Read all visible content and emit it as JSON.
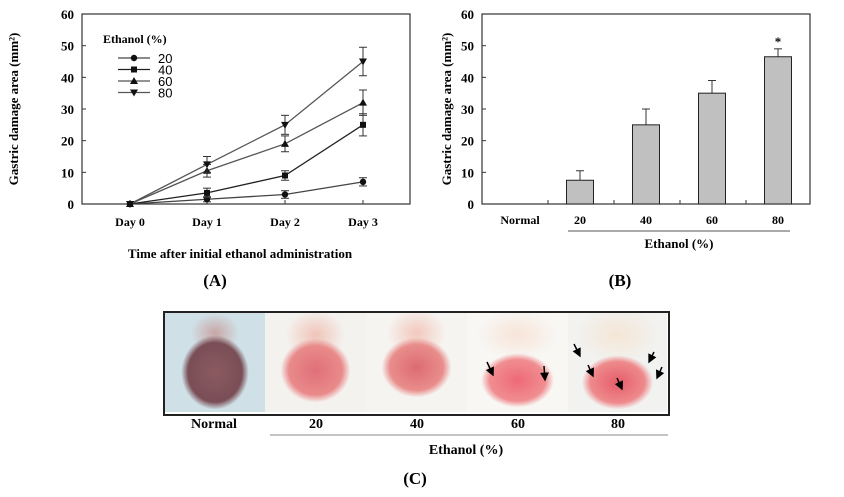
{
  "chart_data": [
    {
      "panel": "(A)",
      "type": "line",
      "ylabel": "Gastric damage area (mm²)",
      "xlabel": "Time after initial ethanol administration",
      "categories": [
        "Day 0",
        "Day 1",
        "Day 2",
        "Day 3"
      ],
      "ylim": [
        0,
        60
      ],
      "yticks": [
        "0",
        "10",
        "20",
        "30",
        "40",
        "50",
        "60"
      ],
      "legend_title": "Ethanol (%)",
      "legend_position": "top-left",
      "series": [
        {
          "name": "20",
          "marker": "circle",
          "values": [
            0,
            1.5,
            3,
            7
          ],
          "errors": [
            0,
            0.8,
            1.2,
            1.3
          ]
        },
        {
          "name": "40",
          "marker": "square",
          "values": [
            0,
            3.5,
            9,
            25
          ],
          "errors": [
            0,
            1.5,
            1.5,
            3.5
          ]
        },
        {
          "name": "60",
          "marker": "triangle-up",
          "values": [
            0,
            10.5,
            19,
            32
          ],
          "errors": [
            0,
            2,
            2.5,
            4
          ]
        },
        {
          "name": "80",
          "marker": "triangle-down",
          "values": [
            0,
            12.5,
            25,
            45
          ],
          "errors": [
            0,
            2.5,
            3,
            4.5
          ]
        }
      ]
    },
    {
      "panel": "(B)",
      "type": "bar",
      "ylabel": "Gastric damage area (mm²)",
      "xlabel": "Ethanol (%)",
      "categories": [
        "Normal",
        "20",
        "40",
        "60",
        "80"
      ],
      "values": [
        0,
        7.5,
        25,
        35,
        46.5
      ],
      "errors": [
        0,
        3,
        5,
        4,
        2.5
      ],
      "annotations": [
        "",
        "",
        "",
        "",
        "*"
      ],
      "ylim": [
        0,
        60
      ],
      "yticks": [
        "0",
        "10",
        "20",
        "30",
        "40",
        "50",
        "60"
      ],
      "bar_color": "#c0c0c0"
    }
  ],
  "photos": {
    "panel": "(C)",
    "labels": [
      "Normal",
      "20",
      "40",
      "60",
      "80"
    ],
    "group_label": "Ethanol (%)"
  }
}
